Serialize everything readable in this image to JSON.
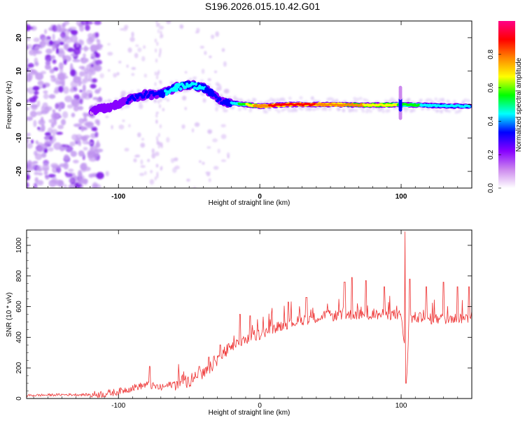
{
  "title": "S196.2026.015.10.42.G01",
  "chart_data": [
    {
      "type": "heatmap",
      "name": "spectrogram",
      "xlabel": "Height of straight line (km)",
      "ylabel": "Frequency (Hz)",
      "xlim": [
        -165,
        150
      ],
      "ylim": [
        -25,
        25
      ],
      "xticks": [
        -100,
        0,
        100
      ],
      "yticks": [
        -20,
        -10,
        0,
        10,
        20
      ],
      "ridge": {
        "x": [
          -118,
          -110,
          -100,
          -90,
          -80,
          -70,
          -60,
          -50,
          -40,
          -33,
          -28,
          -20,
          -10,
          0,
          20,
          50,
          80,
          100,
          120,
          148
        ],
        "frequency": [
          -2,
          -1,
          0,
          2,
          3,
          3,
          5,
          6,
          5,
          3,
          1,
          0.5,
          0,
          -0.5,
          0,
          0,
          -0.2,
          0,
          -0.3,
          -0.5
        ],
        "amplitude": [
          0.2,
          0.25,
          0.25,
          0.3,
          0.3,
          0.35,
          0.5,
          0.45,
          0.4,
          0.35,
          0.3,
          0.4,
          0.6,
          0.8,
          0.9,
          0.8,
          0.7,
          0.6,
          0.45,
          0.4
        ]
      },
      "colorbar": {
        "label": "Normalized spectral amplitude",
        "range": [
          0.0,
          1.0
        ],
        "ticks": [
          "0.0",
          "0.2",
          "0.4",
          "0.6",
          "0.8"
        ],
        "colors": [
          "#ffffff",
          "#cc88ee",
          "#8800ff",
          "#0000ff",
          "#00ffff",
          "#00ff00",
          "#ffff00",
          "#ff8800",
          "#ff0000",
          "#ff0088"
        ]
      }
    },
    {
      "type": "line",
      "name": "snr",
      "xlabel": "Height of straight line (km)",
      "ylabel": "SNR (10 * v/v)",
      "xlim": [
        -165,
        150
      ],
      "ylim": [
        0,
        1100
      ],
      "xticks": [
        -100,
        0,
        100
      ],
      "yticks": [
        0,
        200,
        400,
        600,
        800,
        1000
      ],
      "color": "#ee3333",
      "series": [
        {
          "name": "SNR",
          "x": [
            -165,
            -140,
            -120,
            -110,
            -100,
            -90,
            -80,
            -75,
            -70,
            -60,
            -50,
            -40,
            -35,
            -30,
            -25,
            -20,
            -15,
            -10,
            0,
            10,
            20,
            30,
            40,
            50,
            60,
            70,
            80,
            90,
            100,
            103,
            104,
            106,
            110,
            120,
            130,
            140,
            150
          ],
          "values": [
            20,
            25,
            25,
            30,
            45,
            70,
            90,
            80,
            70,
            100,
            120,
            150,
            200,
            260,
            300,
            330,
            360,
            380,
            420,
            460,
            490,
            510,
            530,
            540,
            545,
            550,
            545,
            550,
            545,
            300,
            170,
            520,
            530,
            520,
            520,
            525,
            525
          ],
          "spikes": [
            {
              "x": -78,
              "y": 210
            },
            {
              "x": -43,
              "y": 210
            },
            {
              "x": -36,
              "y": 270
            },
            {
              "x": -28,
              "y": 350
            },
            {
              "x": -14,
              "y": 550
            },
            {
              "x": -7,
              "y": 540
            },
            {
              "x": 20,
              "y": 630
            },
            {
              "x": 33,
              "y": 660
            },
            {
              "x": 60,
              "y": 760
            },
            {
              "x": 65,
              "y": 790
            },
            {
              "x": 75,
              "y": 770
            },
            {
              "x": 88,
              "y": 730
            },
            {
              "x": 103,
              "y": 1090
            },
            {
              "x": 106,
              "y": 780
            },
            {
              "x": 118,
              "y": 730
            },
            {
              "x": 130,
              "y": 760
            },
            {
              "x": 140,
              "y": 730
            },
            {
              "x": 148,
              "y": 730
            }
          ],
          "dips": [
            {
              "x": 103.5,
              "y": 100
            }
          ]
        }
      ]
    }
  ]
}
